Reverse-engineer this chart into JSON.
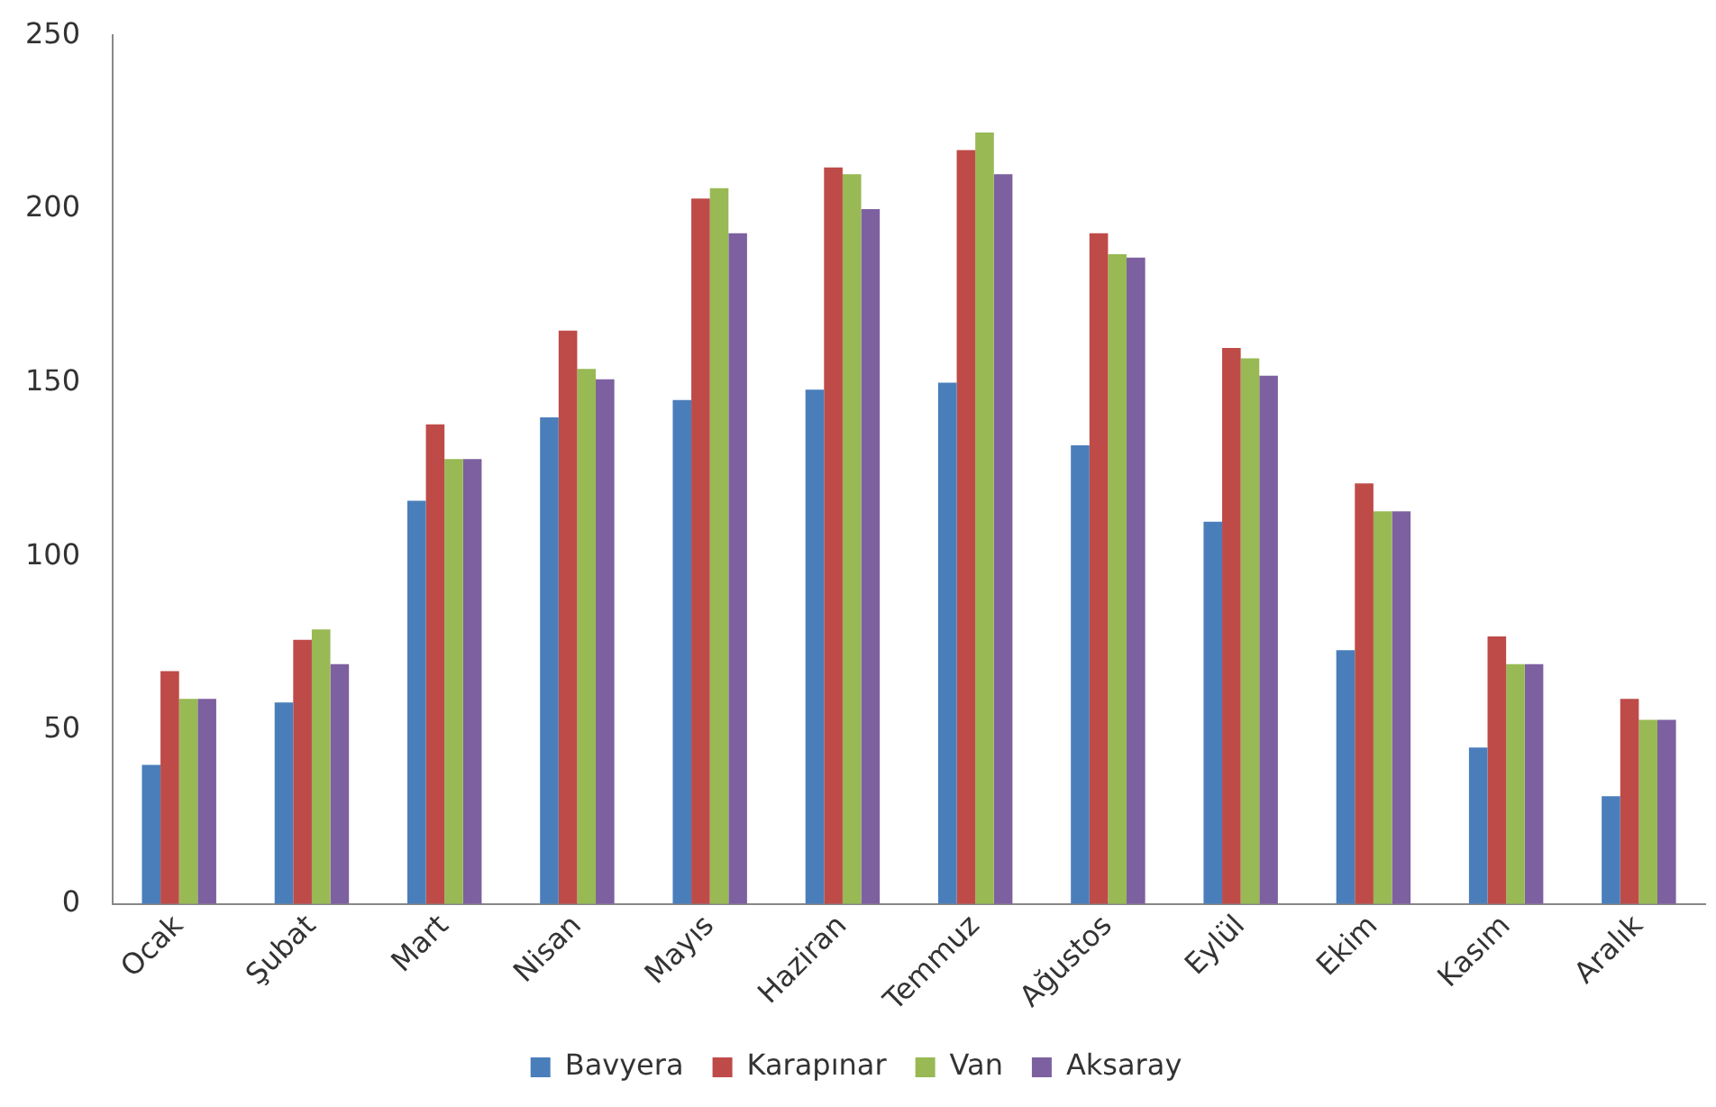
{
  "chart_data": {
    "type": "bar",
    "categories": [
      "Ocak",
      "Şubat",
      "Mart",
      "Nisan",
      "Mayıs",
      "Haziran",
      "Temmuz",
      "Ağustos",
      "Eylül",
      "Ekim",
      "Kasım",
      "Aralık"
    ],
    "series": [
      {
        "name": "Bavyera",
        "color": "#4a7ebb",
        "values": [
          40,
          58,
          116,
          140,
          145,
          148,
          150,
          132,
          110,
          73,
          45,
          31
        ]
      },
      {
        "name": "Karapınar",
        "color": "#be4b48",
        "values": [
          67,
          76,
          138,
          165,
          203,
          212,
          217,
          193,
          160,
          121,
          77,
          59
        ]
      },
      {
        "name": "Van",
        "color": "#98b954",
        "values": [
          59,
          79,
          128,
          154,
          206,
          210,
          222,
          187,
          157,
          113,
          69,
          53
        ]
      },
      {
        "name": "Aksaray",
        "color": "#7d60a0",
        "values": [
          59,
          69,
          128,
          151,
          193,
          200,
          210,
          186,
          152,
          113,
          69,
          53
        ]
      }
    ],
    "ylim": [
      0,
      250
    ],
    "yticks": [
      0,
      50,
      100,
      150,
      200,
      250
    ],
    "grid": false,
    "legend": "bottom"
  }
}
